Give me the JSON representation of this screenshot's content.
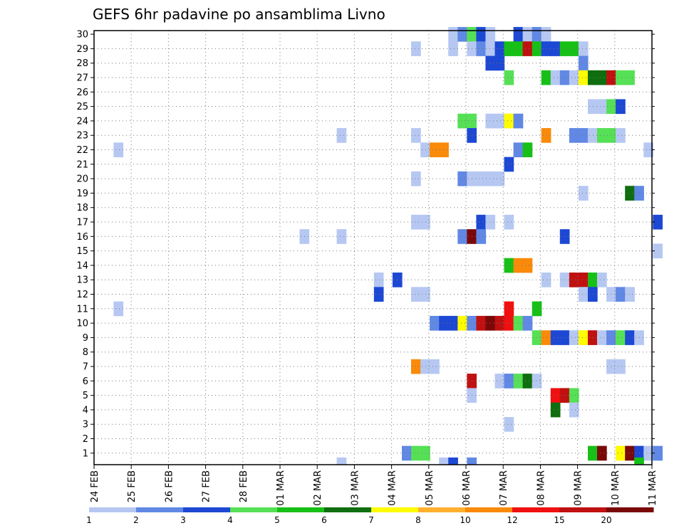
{
  "chart_data": {
    "type": "heatmap",
    "title": "GEFS 6hr padavine po ansamblima Livno",
    "x_tick_labels": [
      "24 FEB",
      "25 FEB",
      "26 FEB",
      "27 FEB",
      "28 FEB",
      "01 MAR",
      "02 MAR",
      "03 MAR",
      "04 MAR",
      "05 MAR",
      "06 MAR",
      "07 MAR",
      "08 MAR",
      "09 MAR",
      "10 MAR",
      "11 MAR"
    ],
    "x_range_days": [
      0,
      15
    ],
    "y_tick_labels": [
      "1",
      "2",
      "3",
      "4",
      "5",
      "6",
      "7",
      "8",
      "9",
      "10",
      "11",
      "12",
      "13",
      "14",
      "15",
      "16",
      "17",
      "18",
      "19",
      "20",
      "21",
      "22",
      "23",
      "24",
      "25",
      "26",
      "27",
      "28",
      "29",
      "30"
    ],
    "y_range": [
      0.2,
      30
    ],
    "grid": true,
    "colorbar": {
      "labels": [
        "1",
        "2",
        "3",
        "4",
        "5",
        "6",
        "7",
        "8",
        "10",
        "12",
        "15",
        "20"
      ],
      "colors": [
        "#b6c8f2",
        "#6088e4",
        "#1d48d4",
        "#56e056",
        "#17c017",
        "#0f6e0f",
        "#fffb00",
        "#ffb030",
        "#f98a0a",
        "#f01010",
        "#c01010",
        "#7a0808"
      ]
    },
    "cells": [
      [
        30,
        9.65,
        1
      ],
      [
        30,
        9.9,
        2
      ],
      [
        30,
        10.15,
        4
      ],
      [
        30,
        10.4,
        3
      ],
      [
        30,
        10.65,
        1
      ],
      [
        30,
        11.4,
        3
      ],
      [
        30,
        11.65,
        1
      ],
      [
        30,
        11.9,
        2
      ],
      [
        30,
        12.15,
        1
      ],
      [
        29,
        8.65,
        1
      ],
      [
        29,
        9.65,
        1
      ],
      [
        29,
        10.15,
        1
      ],
      [
        29,
        10.4,
        2
      ],
      [
        29,
        10.65,
        1
      ],
      [
        29,
        10.9,
        3
      ],
      [
        29,
        11.15,
        5
      ],
      [
        29,
        11.4,
        5
      ],
      [
        29,
        11.65,
        11
      ],
      [
        29,
        11.9,
        5
      ],
      [
        29,
        12.15,
        3
      ],
      [
        29,
        12.4,
        3
      ],
      [
        29,
        12.65,
        5
      ],
      [
        29,
        12.9,
        5
      ],
      [
        29,
        13.15,
        1
      ],
      [
        28,
        10.65,
        3
      ],
      [
        28,
        10.9,
        3
      ],
      [
        28,
        13.15,
        2
      ],
      [
        27,
        11.15,
        4
      ],
      [
        27,
        12.15,
        5
      ],
      [
        27,
        12.4,
        1
      ],
      [
        27,
        12.65,
        2
      ],
      [
        27,
        12.9,
        1
      ],
      [
        27,
        13.15,
        7
      ],
      [
        27,
        13.4,
        6
      ],
      [
        27,
        13.65,
        6
      ],
      [
        27,
        13.9,
        11
      ],
      [
        27,
        14.15,
        4
      ],
      [
        27,
        14.4,
        4
      ],
      [
        25,
        13.4,
        1
      ],
      [
        25,
        13.65,
        1
      ],
      [
        25,
        13.9,
        4
      ],
      [
        25,
        14.15,
        3
      ],
      [
        24,
        9.9,
        4
      ],
      [
        24,
        10.15,
        4
      ],
      [
        24,
        10.65,
        1
      ],
      [
        24,
        10.9,
        1
      ],
      [
        24,
        11.15,
        7
      ],
      [
        24,
        11.4,
        2
      ],
      [
        23,
        6.65,
        1
      ],
      [
        23,
        8.65,
        1
      ],
      [
        23,
        10.15,
        3
      ],
      [
        23,
        12.15,
        9
      ],
      [
        23,
        12.9,
        2
      ],
      [
        23,
        13.15,
        2
      ],
      [
        23,
        13.4,
        1
      ],
      [
        23,
        13.65,
        4
      ],
      [
        23,
        13.9,
        4
      ],
      [
        23,
        14.15,
        1
      ],
      [
        22,
        0.65,
        1
      ],
      [
        22,
        8.9,
        1
      ],
      [
        22,
        9.15,
        9
      ],
      [
        22,
        9.4,
        9
      ],
      [
        22,
        11.4,
        2
      ],
      [
        22,
        11.65,
        5
      ],
      [
        22,
        14.9,
        1
      ],
      [
        21,
        11.15,
        3
      ],
      [
        20,
        8.65,
        1
      ],
      [
        20,
        9.9,
        2
      ],
      [
        20,
        10.15,
        1
      ],
      [
        20,
        10.4,
        1
      ],
      [
        20,
        10.65,
        1
      ],
      [
        20,
        10.9,
        1
      ],
      [
        19,
        13.15,
        1
      ],
      [
        19,
        14.4,
        6
      ],
      [
        19,
        14.65,
        2
      ],
      [
        17,
        8.65,
        1
      ],
      [
        17,
        8.9,
        1
      ],
      [
        17,
        10.4,
        3
      ],
      [
        17,
        10.65,
        1
      ],
      [
        17,
        11.15,
        1
      ],
      [
        17,
        15.15,
        3
      ],
      [
        16,
        5.65,
        1
      ],
      [
        16,
        6.65,
        1
      ],
      [
        16,
        9.9,
        2
      ],
      [
        16,
        10.15,
        12
      ],
      [
        16,
        10.4,
        2
      ],
      [
        16,
        12.65,
        3
      ],
      [
        15,
        15.15,
        1
      ],
      [
        14,
        11.15,
        5
      ],
      [
        14,
        11.4,
        9
      ],
      [
        14,
        11.65,
        9
      ],
      [
        13,
        7.65,
        1
      ],
      [
        13,
        8.15,
        3
      ],
      [
        13,
        12.15,
        1
      ],
      [
        13,
        12.65,
        1
      ],
      [
        13,
        12.9,
        11
      ],
      [
        13,
        13.15,
        11
      ],
      [
        13,
        13.4,
        5
      ],
      [
        13,
        13.65,
        1
      ],
      [
        12,
        7.65,
        3
      ],
      [
        12,
        8.65,
        1
      ],
      [
        12,
        8.9,
        1
      ],
      [
        12,
        13.15,
        1
      ],
      [
        12,
        13.4,
        3
      ],
      [
        12,
        13.9,
        1
      ],
      [
        12,
        14.15,
        2
      ],
      [
        12,
        14.4,
        1
      ],
      [
        11,
        0.65,
        1
      ],
      [
        11,
        11.15,
        10
      ],
      [
        11,
        11.9,
        5
      ],
      [
        10,
        9.15,
        2
      ],
      [
        10,
        9.4,
        3
      ],
      [
        10,
        9.65,
        3
      ],
      [
        10,
        9.9,
        7
      ],
      [
        10,
        10.15,
        2
      ],
      [
        10,
        10.4,
        11
      ],
      [
        10,
        10.65,
        12
      ],
      [
        10,
        10.9,
        11
      ],
      [
        10,
        11.15,
        10
      ],
      [
        10,
        11.4,
        4
      ],
      [
        10,
        11.65,
        2
      ],
      [
        9,
        11.9,
        4
      ],
      [
        9,
        12.15,
        9
      ],
      [
        9,
        12.4,
        3
      ],
      [
        9,
        12.65,
        3
      ],
      [
        9,
        12.9,
        1
      ],
      [
        9,
        13.15,
        7
      ],
      [
        9,
        13.4,
        11
      ],
      [
        9,
        13.65,
        1
      ],
      [
        9,
        13.9,
        2
      ],
      [
        9,
        14.15,
        4
      ],
      [
        9,
        14.4,
        3
      ],
      [
        9,
        14.65,
        1
      ],
      [
        7,
        8.65,
        9
      ],
      [
        7,
        8.9,
        1
      ],
      [
        7,
        9.15,
        1
      ],
      [
        7,
        13.9,
        1
      ],
      [
        7,
        14.15,
        1
      ],
      [
        6,
        10.15,
        11
      ],
      [
        6,
        10.9,
        1
      ],
      [
        6,
        11.15,
        2
      ],
      [
        6,
        11.4,
        4
      ],
      [
        6,
        11.65,
        6
      ],
      [
        6,
        11.9,
        1
      ],
      [
        5,
        10.15,
        1
      ],
      [
        5,
        12.4,
        10
      ],
      [
        5,
        12.65,
        11
      ],
      [
        5,
        12.9,
        4
      ],
      [
        4,
        12.4,
        6
      ],
      [
        4,
        12.9,
        1
      ],
      [
        3,
        11.15,
        1
      ],
      [
        1,
        8.4,
        2
      ],
      [
        1,
        8.65,
        4
      ],
      [
        1,
        8.9,
        4
      ],
      [
        1,
        13.4,
        5
      ],
      [
        1,
        13.65,
        12
      ],
      [
        1,
        14.15,
        7
      ],
      [
        1,
        14.4,
        12
      ],
      [
        1,
        14.65,
        3
      ],
      [
        1,
        14.9,
        1
      ],
      [
        1,
        15.15,
        2
      ]
    ],
    "partial_cells": [
      [
        6.65,
        1
      ],
      [
        9.4,
        1
      ],
      [
        9.65,
        3
      ],
      [
        10.15,
        2
      ],
      [
        14.65,
        5
      ]
    ]
  }
}
